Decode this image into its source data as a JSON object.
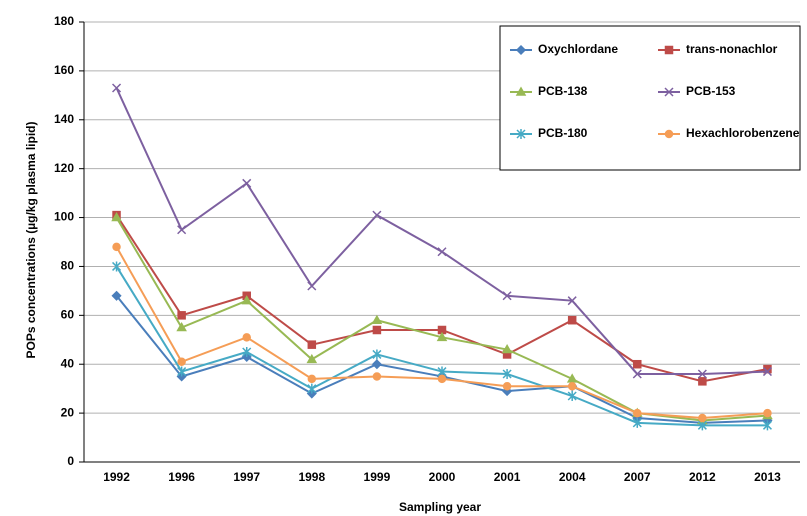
{
  "chart_data": {
    "type": "line",
    "x_label": "Sampling year",
    "y_label": "POPs concentrations (µg/kg plasma lipid)",
    "categories": [
      "1992",
      "1996",
      "1997",
      "1998",
      "1999",
      "2000",
      "2001",
      "2004",
      "2007",
      "2012",
      "2013"
    ],
    "series": [
      {
        "name": "Oxychlordane",
        "color": "#4a7ebb",
        "values": [
          68,
          35,
          43,
          28,
          40,
          35,
          29,
          31,
          18,
          16,
          17
        ]
      },
      {
        "name": "trans-nonachlor",
        "color": "#be4b48",
        "values": [
          101,
          60,
          68,
          48,
          54,
          54,
          44,
          58,
          40,
          33,
          38
        ]
      },
      {
        "name": "PCB-138",
        "color": "#98b954",
        "values": [
          100,
          55,
          66,
          42,
          58,
          51,
          46,
          34,
          20,
          17,
          19
        ]
      },
      {
        "name": "PCB-153",
        "color": "#7d60a0",
        "values": [
          153,
          95,
          114,
          72,
          101,
          86,
          68,
          66,
          36,
          36,
          37
        ]
      },
      {
        "name": "PCB-180",
        "color": "#46aac5",
        "values": [
          80,
          37,
          45,
          30,
          44,
          37,
          36,
          27,
          16,
          15,
          15
        ]
      },
      {
        "name": "Hexachlorobenzene",
        "color": "#f59d56",
        "values": [
          88,
          41,
          51,
          34,
          35,
          34,
          31,
          31,
          20,
          18,
          20
        ]
      }
    ],
    "ylim": [
      0,
      180
    ],
    "yticks": [
      0,
      20,
      40,
      60,
      80,
      100,
      120,
      140,
      160,
      180
    ],
    "grid": true,
    "legend": "upper right"
  }
}
